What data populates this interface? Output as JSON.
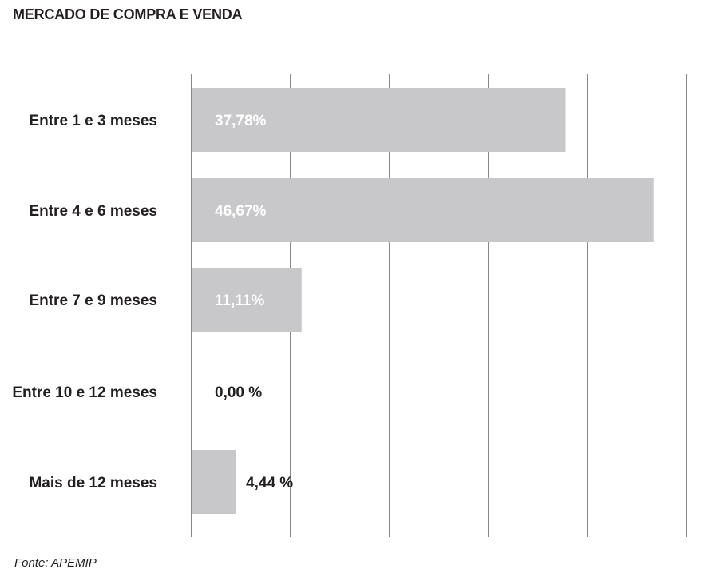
{
  "title": "MERCADO DE COMPRA E VENDA",
  "source": "Fonte: APEMIP",
  "chart_data": {
    "type": "bar",
    "orientation": "horizontal",
    "title": "MERCADO DE COMPRA E VENDA",
    "categories": [
      "Entre 1 e 3 meses",
      "Entre 4 e 6 meses",
      "Entre 7 e 9 meses",
      "Entre 10 e 12 meses",
      "Mais de 12 meses"
    ],
    "values": [
      37.78,
      46.67,
      11.11,
      0.0,
      4.44
    ],
    "data_labels": [
      "37,78%",
      "46,67%",
      "11,11%",
      "0,00 %",
      "4,44 %"
    ],
    "xlim": [
      0,
      50
    ],
    "grid": true,
    "bar_color": "#c8c8ca",
    "grid_color": "#3a3a3a",
    "inside_label_color": "#ffffff",
    "outside_label_color": "#231f20"
  }
}
